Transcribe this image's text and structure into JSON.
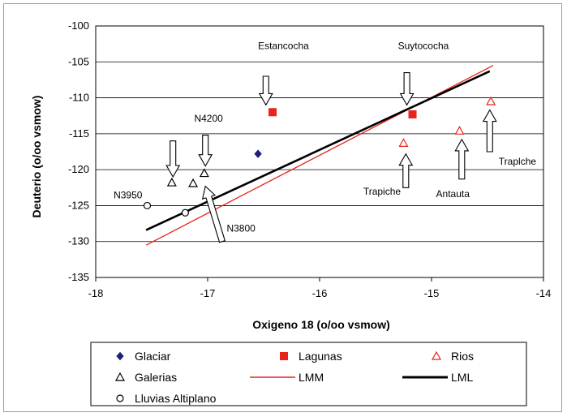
{
  "chart_data": {
    "type": "scatter",
    "xlabel": "Oxigeno 18 (o/oo vsmow)",
    "ylabel": "Deuterio (o/oo vsmow)",
    "xlim": [
      -18,
      -14
    ],
    "ylim": [
      -135,
      -100
    ],
    "x_ticks": [
      "-18",
      "-17",
      "-16",
      "-15",
      "-14"
    ],
    "y_ticks": [
      "-100",
      "-105",
      "-110",
      "-115",
      "-120",
      "-125",
      "-130",
      "-135"
    ],
    "grid": "horizontal",
    "legend_position": "bottom",
    "series": [
      {
        "name": "Glaciar",
        "marker": "diamond-filled",
        "color": "#1f1f7a",
        "points": [
          {
            "x": -16.55,
            "y": -117.8
          }
        ]
      },
      {
        "name": "Lagunas",
        "marker": "square-filled",
        "color": "#e8231c",
        "points": [
          {
            "x": -16.42,
            "y": -112.0
          },
          {
            "x": -15.17,
            "y": -112.3
          }
        ]
      },
      {
        "name": "Rios",
        "marker": "triangle-open",
        "color": "#e8231c",
        "points": [
          {
            "x": -15.25,
            "y": -116.3
          },
          {
            "x": -14.75,
            "y": -114.6
          },
          {
            "x": -14.47,
            "y": -110.5
          }
        ]
      },
      {
        "name": "Galerias",
        "marker": "triangle-open",
        "color": "#000000",
        "points": [
          {
            "x": -17.32,
            "y": -121.8
          },
          {
            "x": -17.13,
            "y": -121.9
          },
          {
            "x": -17.03,
            "y": -120.5
          }
        ]
      },
      {
        "name": "LMM",
        "marker": "line",
        "color": "#e8231c",
        "points": [
          {
            "x": -17.55,
            "y": -130.5
          },
          {
            "x": -14.45,
            "y": -105.5
          }
        ]
      },
      {
        "name": "LML",
        "marker": "line-thick",
        "color": "#000000",
        "points": [
          {
            "x": -17.55,
            "y": -128.4
          },
          {
            "x": -14.48,
            "y": -106.3
          }
        ]
      },
      {
        "name": "Lluvias Altiplano",
        "marker": "circle-open",
        "color": "#000000",
        "points": [
          {
            "x": -17.54,
            "y": -125.0
          },
          {
            "x": -17.2,
            "y": -126.0
          }
        ]
      }
    ],
    "annotations": [
      {
        "text": "Estancocha",
        "x": -16.55,
        "y": -103.2,
        "arrow": {
          "from": [
            -16.48,
            -107.0
          ],
          "to": [
            -16.48,
            -111.0
          ]
        }
      },
      {
        "text": "Suytococha",
        "x": -15.3,
        "y": -103.2,
        "arrow": {
          "from": [
            -15.22,
            -106.5
          ],
          "to": [
            -15.22,
            -111.0
          ]
        }
      },
      {
        "text": "N4200",
        "x": -17.12,
        "y": -113.3,
        "arrow": {
          "from": [
            -17.02,
            -115.2
          ],
          "to": [
            -17.02,
            -119.5
          ]
        }
      },
      {
        "text": "N3950",
        "x": -17.84,
        "y": -124.0,
        "arrow": null
      },
      {
        "text": "N3800",
        "x": -16.83,
        "y": -128.6,
        "arrow": {
          "from": [
            -16.87,
            -130.0
          ],
          "to": [
            -17.02,
            -122.3
          ]
        }
      },
      {
        "text": "Trapiche",
        "x": -15.61,
        "y": -123.5,
        "arrow": {
          "from": [
            -15.23,
            -122.5
          ],
          "to": [
            -15.23,
            -117.8
          ]
        }
      },
      {
        "text": "Antauta",
        "x": -14.96,
        "y": -123.8,
        "arrow": {
          "from": [
            -14.73,
            -121.3
          ],
          "to": [
            -14.73,
            -115.8
          ]
        }
      },
      {
        "text": "Traplche",
        "x": -14.4,
        "y": -119.3,
        "arrow": {
          "from": [
            -14.48,
            -117.5
          ],
          "to": [
            -14.48,
            -111.7
          ]
        }
      },
      {
        "text": "",
        "x": null,
        "y": null,
        "arrow": {
          "from": [
            -17.31,
            -116.0
          ],
          "to": [
            -17.31,
            -121.0
          ]
        }
      }
    ],
    "legend": [
      {
        "label": "Glaciar",
        "series": "Glaciar"
      },
      {
        "label": "Lagunas",
        "series": "Lagunas"
      },
      {
        "label": "Rios",
        "series": "Rios"
      },
      {
        "label": "Galerias",
        "series": "Galerias"
      },
      {
        "label": "LMM",
        "series": "LMM"
      },
      {
        "label": "LML",
        "series": "LML"
      },
      {
        "label": "Lluvias Altiplano",
        "series": "Lluvias Altiplano"
      }
    ]
  }
}
